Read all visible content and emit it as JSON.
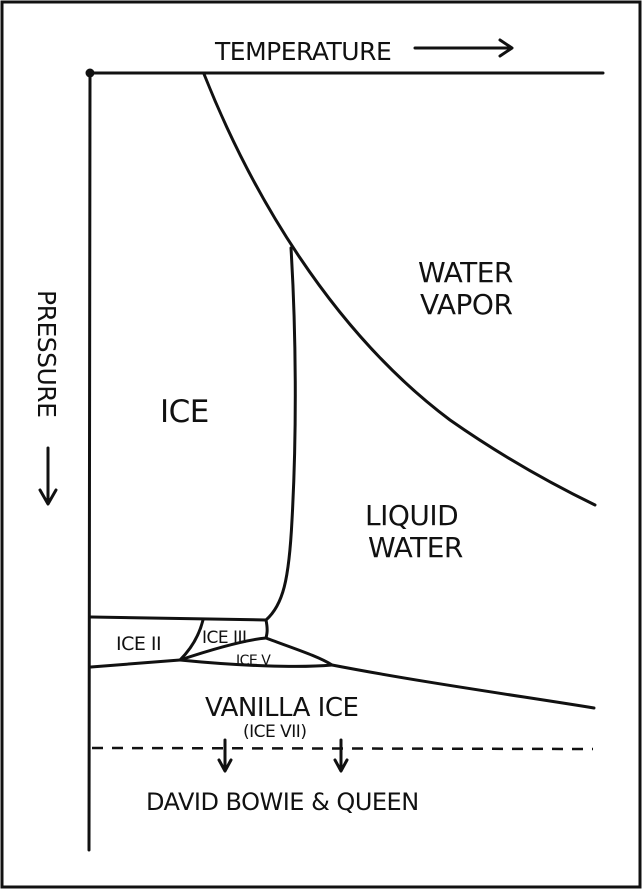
{
  "axes": {
    "temperature_label": "TEMPERATURE",
    "pressure_label": "PRESSURE"
  },
  "regions": {
    "ice": "ICE",
    "water_vapor_line1": "WATER",
    "water_vapor_line2": "VAPOR",
    "liquid_water_line1": "LIQUID",
    "liquid_water_line2": "WATER",
    "ice_ii": "ICE II",
    "ice_iii": "ICE III",
    "ice_v": "ICE V",
    "vanilla_ice": "VANILLA ICE",
    "vanilla_ice_sub": "(ICE VII)",
    "david_bowie_queen": "DAVID BOWIE & QUEEN"
  },
  "colors": {
    "ink": "#111111",
    "background": "#ffffff"
  }
}
